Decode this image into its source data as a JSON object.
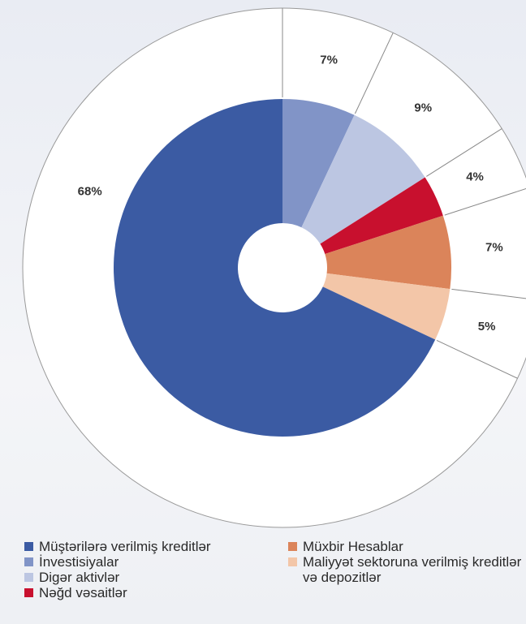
{
  "chart_data": {
    "type": "donut",
    "categories": [
      "Müştərilərə verilmiş kreditlər",
      "İnvestisiyalar",
      "Digər aktivlər",
      "Nəğd vəsaitlər",
      "Müxbir Hesablar",
      "Maliyyət sektoruna verilmiş kreditlər və depozitlər"
    ],
    "values": [
      68,
      7,
      9,
      4,
      7,
      5
    ],
    "value_labels": [
      "68%",
      "7%",
      "9%",
      "4%",
      "7%",
      "5%"
    ],
    "colors": [
      "#3b5ba3",
      "#8194c7",
      "#bcc6e2",
      "#c8102e",
      "#db845a",
      "#f3c6a8"
    ],
    "start_angle_category": 1,
    "legend": "bottom"
  }
}
